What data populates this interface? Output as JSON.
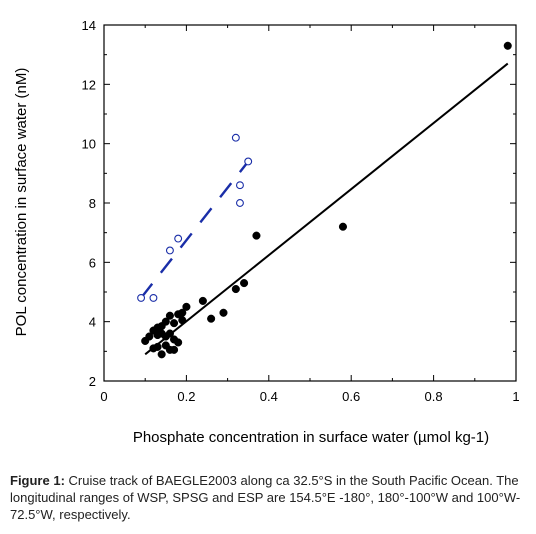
{
  "chart_data": {
    "type": "scatter",
    "xlabel": "Phosphate concentration in surface water (µmol kg-1)",
    "ylabel": "POL concentration in surface water (nM)",
    "xlim": [
      0,
      1
    ],
    "ylim": [
      2,
      14
    ],
    "x_ticks": [
      0,
      0.2,
      0.4,
      0.6,
      0.8,
      1
    ],
    "x_tick_labels": [
      "0",
      "0.2",
      "0.4",
      "0.6",
      "0.8",
      "1"
    ],
    "y_ticks": [
      2,
      4,
      6,
      8,
      10,
      12,
      14
    ],
    "y_tick_labels": [
      "2",
      "4",
      "6",
      "8",
      "10",
      "12",
      "14"
    ],
    "grid": false,
    "series": [
      {
        "marker": "filled-circle",
        "color": "#000000",
        "points": [
          [
            0.98,
            13.3
          ],
          [
            0.58,
            7.2
          ],
          [
            0.37,
            6.9
          ],
          [
            0.34,
            5.3
          ],
          [
            0.32,
            5.1
          ],
          [
            0.29,
            4.3
          ],
          [
            0.26,
            4.1
          ],
          [
            0.24,
            4.7
          ],
          [
            0.2,
            4.5
          ],
          [
            0.19,
            4.3
          ],
          [
            0.18,
            4.25
          ],
          [
            0.17,
            3.95
          ],
          [
            0.16,
            4.2
          ],
          [
            0.15,
            4.0
          ],
          [
            0.14,
            3.85
          ],
          [
            0.13,
            3.8
          ],
          [
            0.12,
            3.7
          ],
          [
            0.11,
            3.5
          ],
          [
            0.1,
            3.35
          ],
          [
            0.13,
            3.55
          ],
          [
            0.14,
            3.6
          ],
          [
            0.15,
            3.5
          ],
          [
            0.16,
            3.6
          ],
          [
            0.17,
            3.4
          ],
          [
            0.18,
            3.3
          ],
          [
            0.15,
            3.2
          ],
          [
            0.16,
            3.05
          ],
          [
            0.13,
            3.15
          ],
          [
            0.12,
            3.1
          ],
          [
            0.14,
            2.9
          ],
          [
            0.17,
            3.05
          ],
          [
            0.19,
            4.05
          ]
        ]
      },
      {
        "marker": "open-circle",
        "color": "#1a2ea8",
        "points": [
          [
            0.09,
            4.8
          ],
          [
            0.12,
            4.8
          ],
          [
            0.16,
            6.4
          ],
          [
            0.18,
            6.8
          ],
          [
            0.32,
            10.2
          ],
          [
            0.33,
            8.6
          ],
          [
            0.33,
            8.0
          ],
          [
            0.35,
            9.4
          ]
        ]
      }
    ],
    "fit_lines": [
      {
        "style": "solid",
        "color": "#000000",
        "x": [
          0.1,
          0.98
        ],
        "y": [
          2.9,
          12.7
        ]
      },
      {
        "style": "dashed",
        "color": "#1a2ea8",
        "x": [
          0.09,
          0.35
        ],
        "y": [
          4.8,
          9.4
        ]
      }
    ]
  },
  "caption": {
    "label": "Figure 1:",
    "text": " Cruise track of BAEGLE2003 along ca 32.5°S in the South Pacific Ocean. The longitudinal ranges of WSP, SPSG and ESP are 154.5°E -180°, 180°-100°W and 100°W-72.5°W, respectively."
  }
}
